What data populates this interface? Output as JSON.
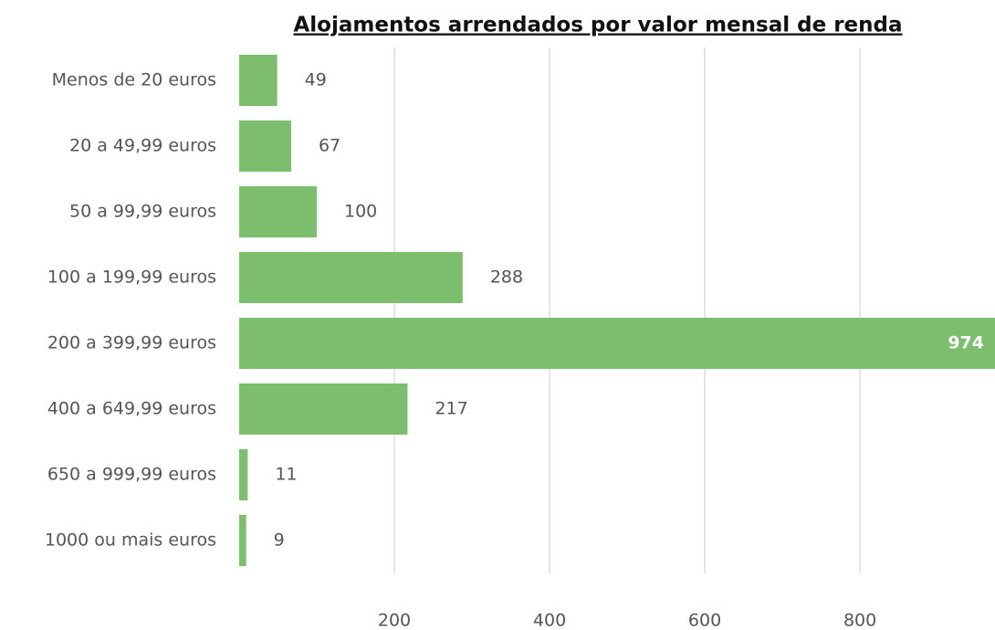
{
  "chart_data": {
    "type": "bar",
    "orientation": "horizontal",
    "title": "Alojamentos arrendados por valor mensal de renda",
    "categories": [
      "Menos de 20 euros",
      "20 a 49,99 euros",
      "50 a 99,99 euros",
      "100 a 199,99 euros",
      "200 a 399,99 euros",
      "400 a 649,99 euros",
      "650 a 999,99 euros",
      "1000 ou mais euros"
    ],
    "values": [
      49,
      67,
      100,
      288,
      974,
      217,
      11,
      9
    ],
    "color": "#7dbd6e",
    "xlim": [
      0,
      974
    ],
    "xticks": [
      200,
      400,
      600,
      800
    ],
    "grid": true
  }
}
